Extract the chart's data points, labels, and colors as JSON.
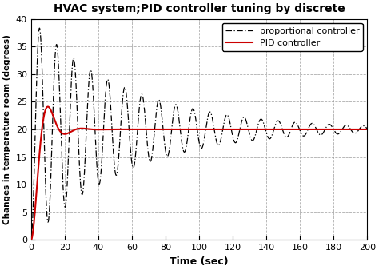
{
  "title": "HVAC system;PID controller tuning by discrete",
  "xlabel": "Time (sec)",
  "ylabel": "Changes in temperature room (degrees)",
  "xlim": [
    0,
    200
  ],
  "ylim": [
    0,
    40
  ],
  "xticks": [
    0,
    20,
    40,
    60,
    80,
    100,
    120,
    140,
    160,
    180,
    200
  ],
  "yticks": [
    0,
    5,
    10,
    15,
    20,
    25,
    30,
    35,
    40
  ],
  "prop_color": "#000000",
  "pid_color": "#cc0000",
  "prop_label": "proportional controller",
  "pid_label": "PID controller",
  "setpoint": 20.0,
  "background_color": "#ffffff",
  "grid_color": "#999999"
}
